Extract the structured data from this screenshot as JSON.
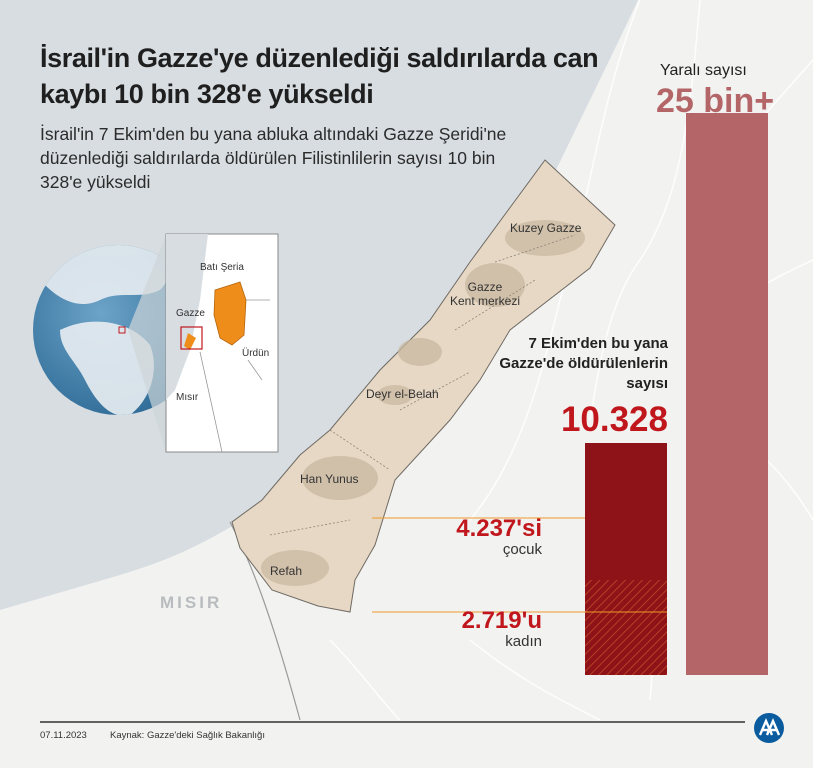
{
  "title": "İsrail'in Gazze'ye düzenlediği saldırılarda can kaybı 10 bin 328'e yükseldi",
  "subtitle": "İsrail'in 7 Ekim'den bu yana abluka altındaki Gazze Şeridi'ne düzenlediği saldırılarda öldürülen Filistinlilerin sayısı 10 bin 328'e yükseldi",
  "map_labels": {
    "north": "Kuzey Gazze",
    "city_line1": "Gazze",
    "city_line2": "Kent merkezi",
    "deir": "Deyr el-Belah",
    "khan": "Han Yunus",
    "rafah": "Refah",
    "egypt": "MISIR"
  },
  "inset_labels": {
    "west_bank": "Batı Şeria",
    "gaza": "Gazze",
    "jordan": "Ürdün",
    "egypt": "Mısır"
  },
  "stats": {
    "injured_label": "Yaralı sayısı",
    "injured_value": "25 bin+",
    "killed_label": "7 Ekim'den bu yana Gazze'de öldürülenlerin sayısı",
    "killed_value": "10.328",
    "children_value": "4.237'si",
    "children_label": "çocuk",
    "women_value": "2.719'u",
    "women_label": "kadın",
    "killed_total": 10328,
    "children_total": 4237,
    "women_total": 2719
  },
  "colors": {
    "sea": "#d7dde1",
    "land": "#f2f2f1",
    "strip": "#e6d8c4",
    "injured_bar": "#b36567",
    "killed_bar": "#8e1318",
    "accent_red": "#c0171d",
    "inset_highlight": "#ef8d1b",
    "guide_line": "#ef9a2a"
  },
  "footer": {
    "date": "07.11.2023",
    "source": "Kaynak: Gazze'deki Sağlık Bakanlığı",
    "logo": "AA"
  }
}
